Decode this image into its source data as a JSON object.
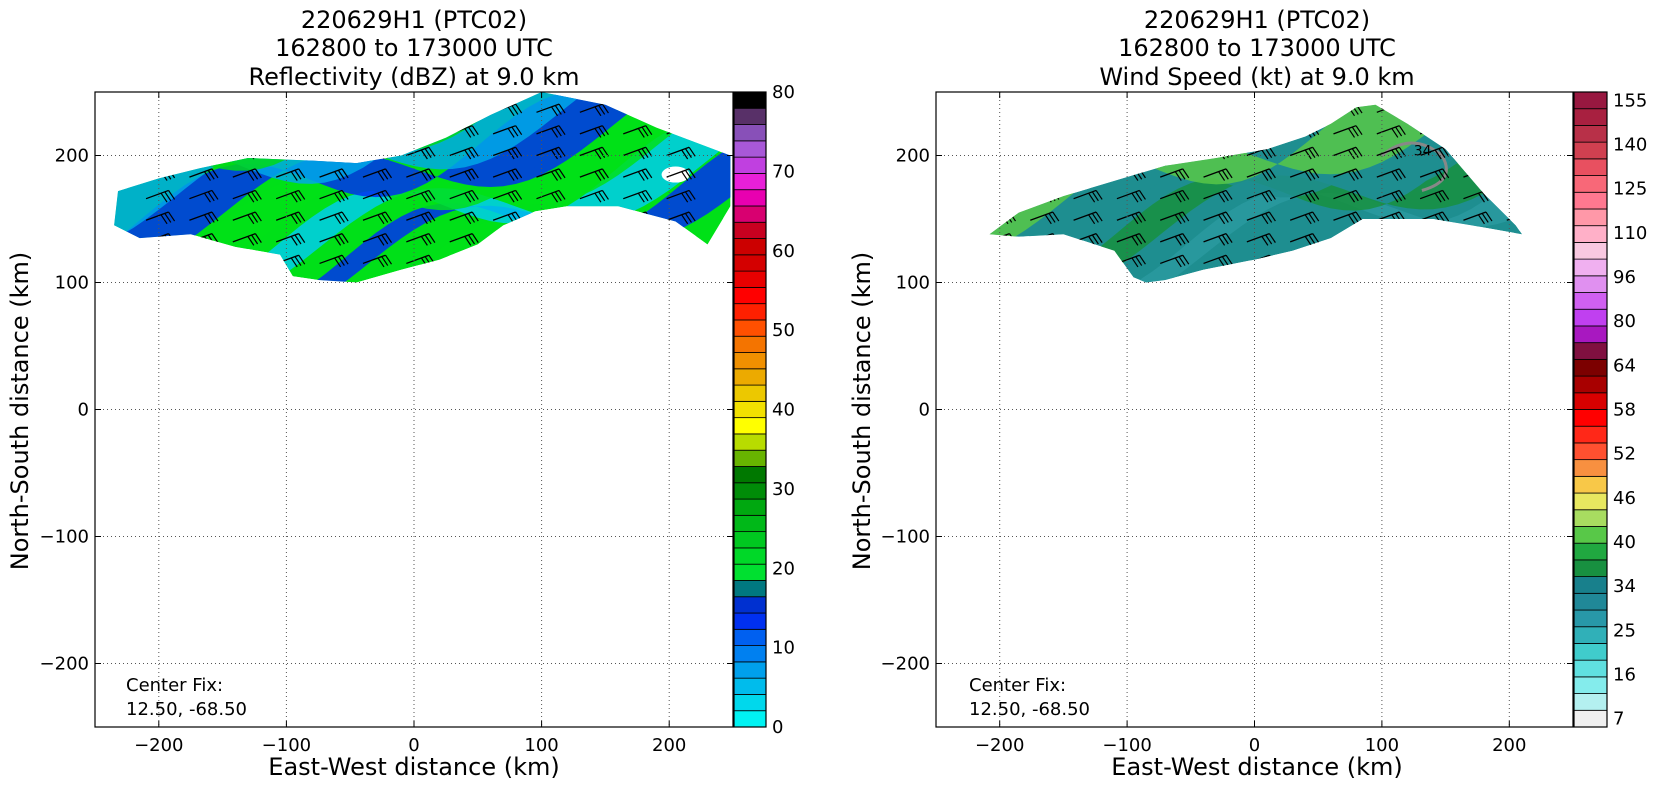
{
  "chart_data": [
    {
      "type": "heatmap",
      "title_lines": [
        "220629H1 (PTC02)",
        "162800 to 173000 UTC",
        "Reflectivity (dBZ) at 9.0 km"
      ],
      "xlabel": "East-West distance (km)",
      "ylabel": "North-South distance (km)",
      "xlim": [
        -250,
        250
      ],
      "ylim": [
        -250,
        250
      ],
      "xticks": [
        -200,
        -100,
        0,
        100,
        200
      ],
      "yticks": [
        -200,
        -100,
        0,
        100,
        200
      ],
      "xtick_labels": [
        "−200",
        "−100",
        "0",
        "100",
        "200"
      ],
      "ytick_labels": [
        "−200",
        "−100",
        "0",
        "100",
        "200"
      ],
      "grid": true,
      "annotation_lines": [
        "Center Fix:",
        "12.50, -68.50"
      ],
      "colorbar": {
        "min": 0,
        "max": 80,
        "ticks": [
          0,
          10,
          20,
          30,
          40,
          50,
          60,
          70,
          80
        ],
        "tick_labels": [
          "0",
          "10",
          "20",
          "30",
          "40",
          "50",
          "60",
          "70",
          "80"
        ],
        "colors": [
          "#00f2f2",
          "#00d8ec",
          "#00bcec",
          "#00a0ec",
          "#0080f0",
          "#0060f0",
          "#0030f0",
          "#0030d0",
          "#007880",
          "#00e030",
          "#00d828",
          "#00c820",
          "#00b818",
          "#00a810",
          "#008c08",
          "#007800",
          "#68b400",
          "#b8dc00",
          "#ffff00",
          "#f2e000",
          "#ecc800",
          "#ecaa00",
          "#f09000",
          "#f47400",
          "#ff5000",
          "#ff2000",
          "#ff0000",
          "#e80000",
          "#d40000",
          "#cc0000",
          "#c80020",
          "#d80070",
          "#e800b0",
          "#e820d8",
          "#c040e0",
          "#a858d8",
          "#8850b8",
          "#583068",
          "#000000"
        ]
      },
      "region": [
        [
          -232,
          172
        ],
        [
          -200,
          182
        ],
        [
          -168,
          190
        ],
        [
          -130,
          198
        ],
        [
          -80,
          196
        ],
        [
          -45,
          194
        ],
        [
          -10,
          200
        ],
        [
          25,
          214
        ],
        [
          60,
          232
        ],
        [
          100,
          250
        ],
        [
          150,
          240
        ],
        [
          190,
          222
        ],
        [
          248,
          200
        ],
        [
          248,
          160
        ],
        [
          230,
          130
        ],
        [
          205,
          148
        ],
        [
          160,
          160
        ],
        [
          120,
          160
        ],
        [
          95,
          156
        ],
        [
          70,
          145
        ],
        [
          50,
          130
        ],
        [
          20,
          118
        ],
        [
          -10,
          110
        ],
        [
          -45,
          100
        ],
        [
          -75,
          102
        ],
        [
          -95,
          105
        ],
        [
          -105,
          122
        ],
        [
          -140,
          128
        ],
        [
          -175,
          138
        ],
        [
          -215,
          135
        ],
        [
          -235,
          145
        ]
      ],
      "rain_band_colors": [
        "#00e018",
        "#0030f0",
        "#00ccec",
        "#00e018",
        "#0030f0",
        "#00a8e8",
        "#00d818",
        "#0030f0"
      ]
    },
    {
      "type": "heatmap",
      "title_lines": [
        "220629H1 (PTC02)",
        "162800 to 173000 UTC",
        "Wind Speed (kt) at 9.0 km"
      ],
      "xlabel": "East-West distance (km)",
      "ylabel": "North-South distance (km)",
      "xlim": [
        -250,
        250
      ],
      "ylim": [
        -250,
        250
      ],
      "xticks": [
        -200,
        -100,
        0,
        100,
        200
      ],
      "yticks": [
        -200,
        -100,
        0,
        100,
        200
      ],
      "xtick_labels": [
        "−200",
        "−100",
        "0",
        "100",
        "200"
      ],
      "ytick_labels": [
        "−200",
        "−100",
        "0",
        "100",
        "200"
      ],
      "grid": true,
      "annotation_lines": [
        "Center Fix:",
        "12.50, -68.50"
      ],
      "contour_label": "34",
      "colorbar": {
        "ticks_labels": [
          "7",
          "16",
          "25",
          "34",
          "40",
          "46",
          "52",
          "58",
          "64",
          "80",
          "96",
          "110",
          "125",
          "140",
          "155"
        ],
        "colors": [
          "#f0f0f0",
          "#b4f0f0",
          "#84ecec",
          "#60e0e0",
          "#40cccc",
          "#30b0b8",
          "#2898a8",
          "#208898",
          "#18808c",
          "#189040",
          "#20a840",
          "#58c848",
          "#a8dc60",
          "#e8e860",
          "#f8c848",
          "#f89040",
          "#ff5030",
          "#ff2818",
          "#ff0000",
          "#d80000",
          "#a80000",
          "#7c0000",
          "#801040",
          "#a818c0",
          "#c040f0",
          "#d060f0",
          "#e090f0",
          "#f0b0f0",
          "#f8c8e0",
          "#ffb0c8",
          "#ff98a8",
          "#ff7890",
          "#f86878",
          "#e85060",
          "#d04050",
          "#b83048",
          "#a82040",
          "#981840"
        ]
      },
      "region": [
        [
          -208,
          138
        ],
        [
          -185,
          155
        ],
        [
          -150,
          168
        ],
        [
          -110,
          180
        ],
        [
          -70,
          192
        ],
        [
          -30,
          198
        ],
        [
          10,
          205
        ],
        [
          40,
          215
        ],
        [
          60,
          225
        ],
        [
          80,
          238
        ],
        [
          95,
          240
        ],
        [
          120,
          225
        ],
        [
          150,
          205
        ],
        [
          180,
          170
        ],
        [
          205,
          145
        ],
        [
          210,
          138
        ],
        [
          170,
          145
        ],
        [
          140,
          150
        ],
        [
          115,
          150
        ],
        [
          85,
          150
        ],
        [
          60,
          135
        ],
        [
          30,
          125
        ],
        [
          0,
          118
        ],
        [
          -40,
          110
        ],
        [
          -70,
          102
        ],
        [
          -85,
          100
        ],
        [
          -95,
          104
        ],
        [
          -110,
          125
        ],
        [
          -150,
          138
        ],
        [
          -185,
          136
        ]
      ],
      "wind_band_colors": [
        "#1e8e90",
        "#2a9aa0",
        "#189040",
        "#1e8e90",
        "#58c848"
      ]
    }
  ]
}
